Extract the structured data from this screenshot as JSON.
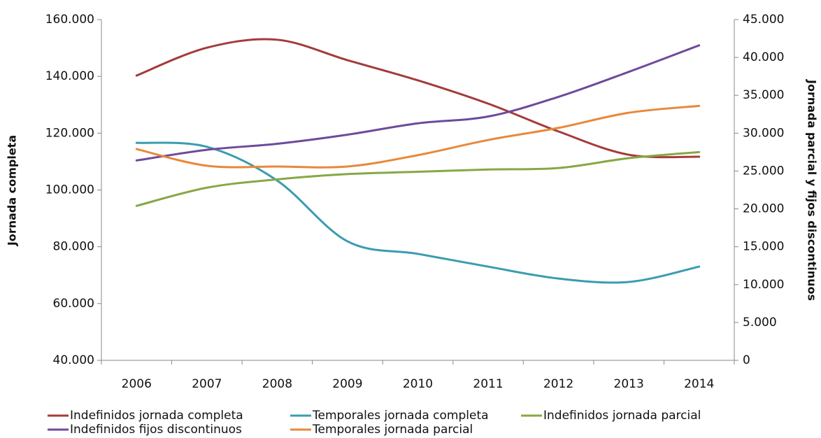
{
  "chart_data": {
    "type": "line",
    "y_label": "Jornada completa",
    "y2_label": "Jornada parcial y fijos discontinuos",
    "categories": [
      "2006",
      "2007",
      "2008",
      "2009",
      "2010",
      "2011",
      "2012",
      "2013",
      "2014"
    ],
    "ylim": [
      40000,
      160000
    ],
    "yticks": [
      {
        "value": 40000,
        "label": "40.000"
      },
      {
        "value": 60000,
        "label": "60.000"
      },
      {
        "value": 80000,
        "label": "80.000"
      },
      {
        "value": 100000,
        "label": "100.000"
      },
      {
        "value": 120000,
        "label": "120.000"
      },
      {
        "value": 140000,
        "label": "140.000"
      },
      {
        "value": 160000,
        "label": "160.000"
      }
    ],
    "y2lim": [
      0,
      45000
    ],
    "y2ticks": [
      0,
      {
        "value": 5000,
        "label": "5.000"
      },
      {
        "value": 10000,
        "label": "10.000"
      },
      {
        "value": 15000,
        "label": "15.000"
      },
      {
        "value": 20000,
        "label": "20.000"
      },
      {
        "value": 25000,
        "label": "25.000"
      },
      {
        "value": 30000,
        "label": "30.000"
      },
      {
        "value": 35000,
        "label": "35.000"
      },
      {
        "value": 40000,
        "label": "40.000"
      },
      {
        "value": 45000,
        "label": "45.000"
      }
    ],
    "smooth": true,
    "series": [
      {
        "name": "Indefinidos jornada completa",
        "color": "#a33b3a",
        "axis": "y",
        "values": [
          140300,
          150100,
          152900,
          145700,
          138600,
          130400,
          120600,
          112400,
          111700
        ]
      },
      {
        "name": "Temporales jornada completa",
        "color": "#3a9cb0",
        "axis": "y",
        "values": [
          116600,
          115200,
          103300,
          81900,
          77500,
          73000,
          68800,
          67600,
          73000
        ]
      },
      {
        "name": "Indefinidos jornada parcial",
        "color": "#86a844",
        "axis": "y2",
        "values": [
          20400,
          22800,
          23900,
          24600,
          24900,
          25200,
          25400,
          26700,
          27500
        ]
      },
      {
        "name": "Indefinidos fijos discontinuos",
        "color": "#6d4a9a",
        "axis": "y2",
        "values": [
          26400,
          27800,
          28600,
          29800,
          31300,
          32200,
          34800,
          38100,
          41600
        ]
      },
      {
        "name": "Temporales jornada parcial",
        "color": "#e8883a",
        "axis": "y2",
        "values": [
          27900,
          25700,
          25600,
          25600,
          27100,
          29100,
          30700,
          32700,
          33600
        ]
      }
    ]
  }
}
